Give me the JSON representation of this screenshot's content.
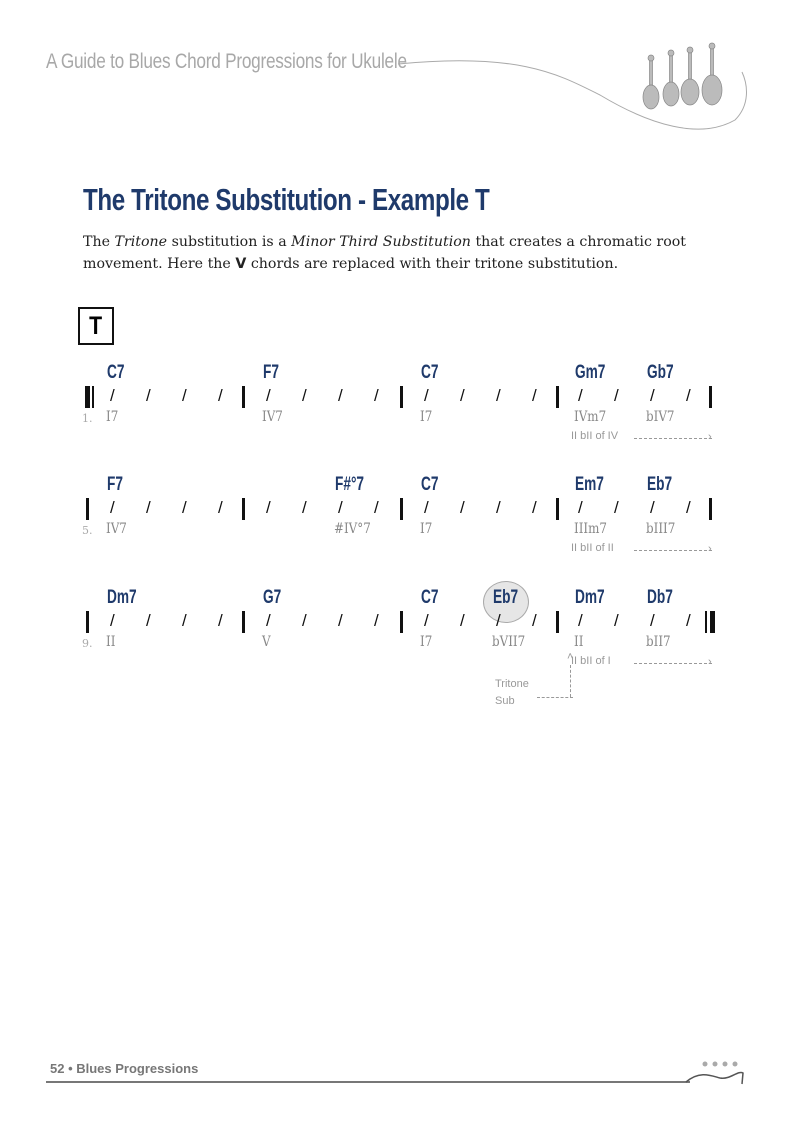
{
  "header": {
    "title": "A Guide to Blues Chord Progressions for Ukulele",
    "logo_icon": "ukuleles-icon"
  },
  "section": {
    "title": "The Tritone Substitution - Example T",
    "intro_parts": [
      "The ",
      "Tritone",
      " substitution is a ",
      "Minor Third Substitution",
      " that creates a chromatic root movement. Here the ",
      "V",
      " chords are replaced with their tritone substitution."
    ],
    "example_label": "T"
  },
  "accent_color": "#1f3a6b",
  "rows": [
    {
      "number": "1.",
      "start_bar": "repeat-start",
      "end_bar": "single",
      "chords": [
        {
          "name": "C7",
          "beat": 0,
          "roman": "I7"
        },
        {
          "name": "F7",
          "beat": 4,
          "roman": "IV7"
        },
        {
          "name": "C7",
          "beat": 8,
          "roman": "I7"
        },
        {
          "name": "Gm7",
          "beat": 12,
          "roman": "IVm7"
        },
        {
          "name": "Gb7",
          "beat": 14,
          "roman": "bIV7"
        }
      ],
      "note": {
        "text": "II bII of IV",
        "beat": 12
      }
    },
    {
      "number": "5.",
      "start_bar": "single",
      "end_bar": "single",
      "chords": [
        {
          "name": "F7",
          "beat": 0,
          "roman": "IV7"
        },
        {
          "name": "F#°7",
          "beat": 6,
          "roman": "#IV°7"
        },
        {
          "name": "C7",
          "beat": 8,
          "roman": "I7"
        },
        {
          "name": "Em7",
          "beat": 12,
          "roman": "IIIm7"
        },
        {
          "name": "Eb7",
          "beat": 14,
          "roman": "bIII7"
        }
      ],
      "note": {
        "text": "II bII of II",
        "beat": 12
      }
    },
    {
      "number": "9.",
      "start_bar": "single",
      "end_bar": "repeat-end",
      "chords": [
        {
          "name": "Dm7",
          "beat": 0,
          "roman": "II"
        },
        {
          "name": "G7",
          "beat": 4,
          "roman": "V"
        },
        {
          "name": "C7",
          "beat": 8,
          "roman": "I7"
        },
        {
          "name": "Eb7",
          "beat": 10,
          "roman": "bVII7",
          "highlight": true
        },
        {
          "name": "Dm7",
          "beat": 12,
          "roman": "II"
        },
        {
          "name": "Db7",
          "beat": 14,
          "roman": "bII7"
        }
      ],
      "note": {
        "text": "II bII of I",
        "beat": 12
      },
      "sub_note": {
        "text": [
          "Tritone",
          "Sub"
        ],
        "beat": 10
      }
    }
  ],
  "footer": {
    "text": "52 • Blues Progressions"
  }
}
